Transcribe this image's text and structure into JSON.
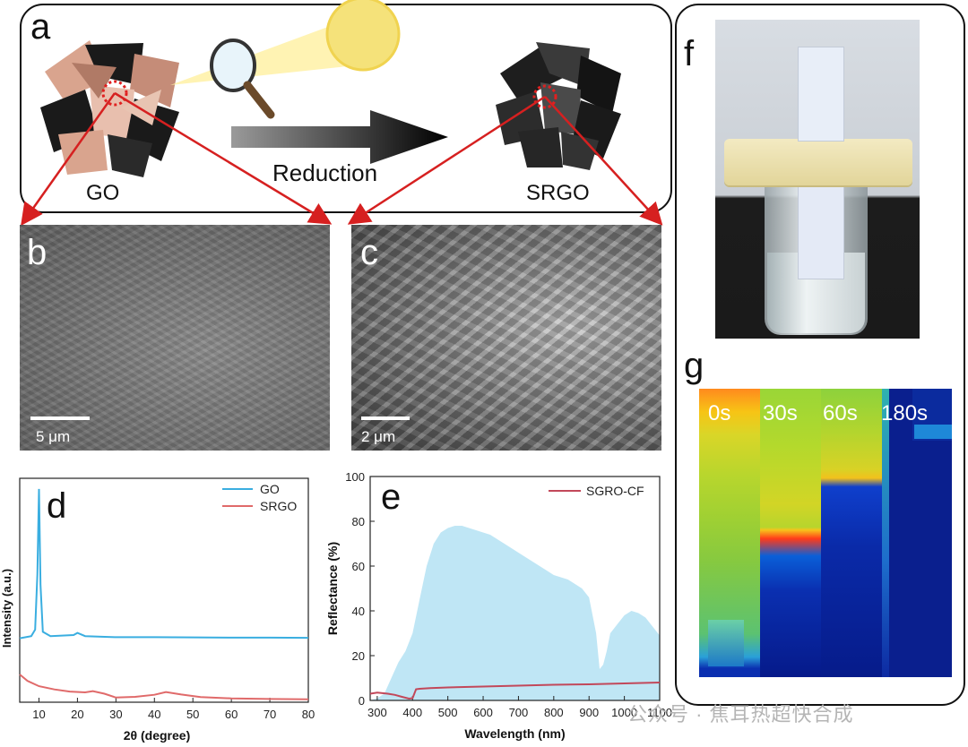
{
  "panels": {
    "a": {
      "letter": "a",
      "go_label": "GO",
      "srgo_label": "SRGO",
      "arrow_label": "Reduction"
    },
    "b": {
      "letter": "b",
      "scale": "5 μm"
    },
    "c": {
      "letter": "c",
      "scale": "2 μm"
    },
    "d": {
      "letter": "d"
    },
    "e": {
      "letter": "e"
    },
    "f": {
      "letter": "f"
    },
    "g": {
      "letter": "g",
      "times": [
        "0s",
        "30s",
        "60s",
        "180s"
      ]
    }
  },
  "watermark": "公众号 · 焦耳热超快合成",
  "colors": {
    "go": "#3aaee0",
    "srgo": "#e06a6a",
    "sgro_cf": "#c2485a",
    "solar_fill": "#bfe6f5"
  },
  "chart_data": [
    {
      "panel": "d",
      "type": "line",
      "xlabel": "2θ (degree)",
      "ylabel": "Intensity (a.u.)",
      "xlim": [
        5,
        80
      ],
      "xticks": [
        10,
        20,
        30,
        40,
        50,
        60,
        70,
        80
      ],
      "legend": "top-right",
      "series": [
        {
          "name": "GO",
          "x": [
            5,
            8,
            9,
            9.6,
            10,
            10.4,
            11,
            13,
            19,
            20,
            22,
            30,
            40,
            50,
            60,
            70,
            80
          ],
          "y": [
            30,
            31,
            34,
            60,
            100,
            55,
            33,
            31,
            31.5,
            32.5,
            31,
            30.5,
            30.5,
            30.4,
            30.3,
            30.3,
            30.2
          ]
        },
        {
          "name": "SRGO",
          "x": [
            5,
            7,
            10,
            14,
            18,
            22,
            24,
            27,
            30,
            35,
            40,
            43,
            47,
            52,
            60,
            70,
            80
          ],
          "y": [
            13,
            10,
            7.5,
            6,
            5,
            4.6,
            5.2,
            4,
            2.2,
            2.5,
            3.5,
            4.8,
            3.6,
            2.4,
            1.8,
            1.5,
            1.4
          ]
        }
      ]
    },
    {
      "panel": "e",
      "type": "area",
      "xlabel": "Wavelength (nm)",
      "ylabel": "Reflectance (%)",
      "xlim": [
        280,
        1100
      ],
      "ylim": [
        0,
        100
      ],
      "xticks": [
        300,
        400,
        500,
        600,
        700,
        800,
        900,
        1000,
        1100
      ],
      "yticks": [
        0,
        20,
        40,
        60,
        80,
        100
      ],
      "legend": "top-right",
      "solar_spectrum": {
        "x": [
          280,
          300,
          320,
          340,
          360,
          380,
          400,
          420,
          440,
          460,
          480,
          500,
          520,
          540,
          560,
          580,
          600,
          620,
          640,
          660,
          680,
          700,
          720,
          740,
          760,
          780,
          800,
          820,
          840,
          860,
          880,
          900,
          920,
          930,
          940,
          950,
          960,
          980,
          1000,
          1020,
          1040,
          1060,
          1080,
          1100
        ],
        "y": [
          0,
          1,
          3,
          10,
          17,
          22,
          30,
          45,
          60,
          70,
          75,
          77,
          78,
          78,
          77,
          76,
          75,
          74,
          72,
          70,
          68,
          66,
          64,
          62,
          60,
          58,
          56,
          55,
          54,
          52,
          50,
          46,
          30,
          14,
          16,
          22,
          30,
          34,
          38,
          40,
          39,
          37,
          33,
          29
        ]
      },
      "series": [
        {
          "name": "SGRO-CF",
          "x": [
            280,
            300,
            330,
            350,
            370,
            390,
            400,
            410,
            420,
            450,
            500,
            600,
            700,
            800,
            900,
            1000,
            1100
          ],
          "y": [
            3,
            3.5,
            3,
            2.5,
            1.6,
            0.8,
            1,
            5,
            5.2,
            5.5,
            5.8,
            6.2,
            6.6,
            7,
            7.2,
            7.6,
            8
          ]
        }
      ]
    }
  ]
}
